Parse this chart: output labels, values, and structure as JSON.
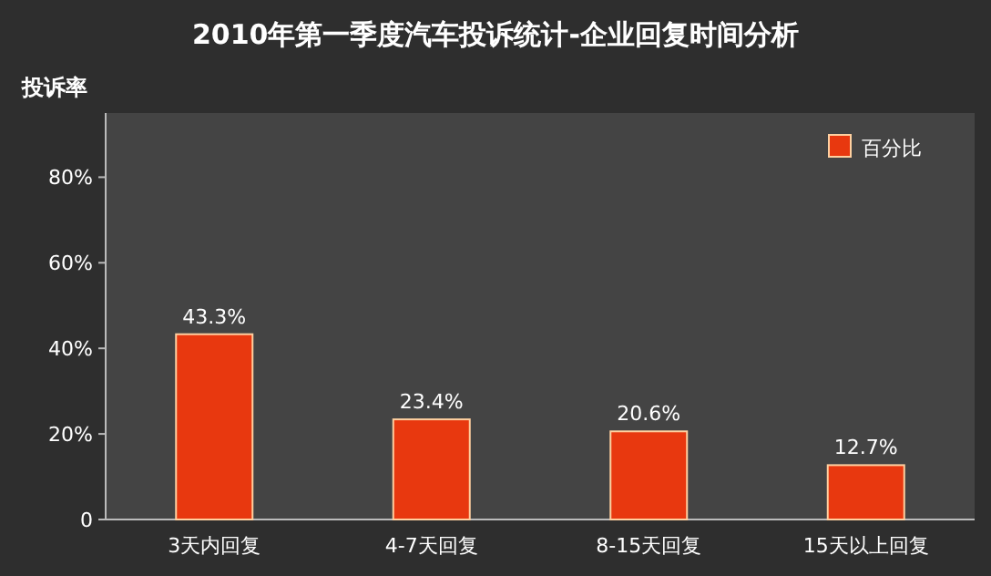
{
  "chart_data": {
    "type": "bar",
    "title": "2010年第一季度汽车投诉统计-企业回复时间分析",
    "ylabel": "投诉率",
    "categories": [
      "3天内回复",
      "4-7天回复",
      "8-15天回复",
      "15天以上回复"
    ],
    "series": [
      {
        "name": "百分比",
        "color": "#e8380f",
        "values": [
          43.3,
          23.4,
          20.6,
          12.7
        ],
        "value_labels": [
          "43.3%",
          "23.4%",
          "20.6%",
          "12.7%"
        ]
      }
    ],
    "ylim": [
      0,
      95
    ],
    "yticks": [
      {
        "value": 0,
        "label": "0"
      },
      {
        "value": 20,
        "label": "20%"
      },
      {
        "value": 40,
        "label": "40%"
      },
      {
        "value": 60,
        "label": "60%"
      },
      {
        "value": 80,
        "label": "80%"
      }
    ],
    "legend": "top right"
  }
}
